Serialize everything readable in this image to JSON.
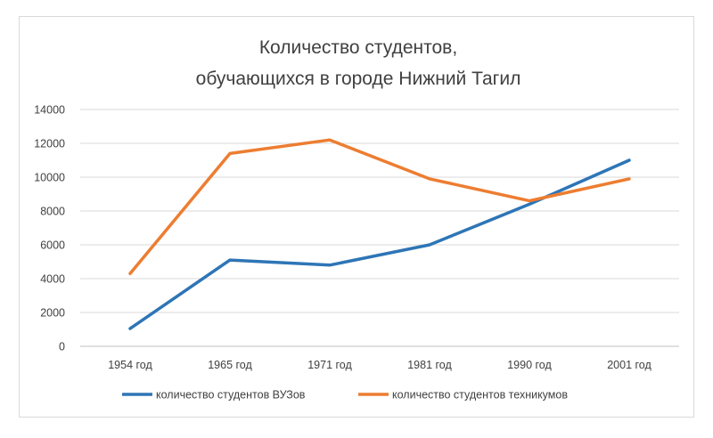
{
  "chart_data": {
    "type": "line",
    "title_lines": [
      "Количество студентов,",
      "обучающихся в городе Нижний Тагил"
    ],
    "xlabel": "",
    "ylabel": "",
    "categories": [
      "1954 год",
      "1965 год",
      "1971 год",
      "1981 год",
      "1990 год",
      "2001 год"
    ],
    "ylim": [
      0,
      14000
    ],
    "yticks": [
      0,
      2000,
      4000,
      6000,
      8000,
      10000,
      12000,
      14000
    ],
    "ytick_labels": [
      "0",
      "2000",
      "4000",
      "6000",
      "8000",
      "10000",
      "12000",
      "14000"
    ],
    "grid": true,
    "legend_position": "bottom",
    "series": [
      {
        "name": "количество студентов ВУЗов",
        "color": "#2e75b6",
        "values": [
          1050,
          5100,
          4800,
          6000,
          8400,
          11000
        ]
      },
      {
        "name": "количество студентов техникумов",
        "color": "#ed7d31",
        "values": [
          4300,
          11400,
          12200,
          9900,
          8600,
          9900
        ]
      }
    ]
  }
}
